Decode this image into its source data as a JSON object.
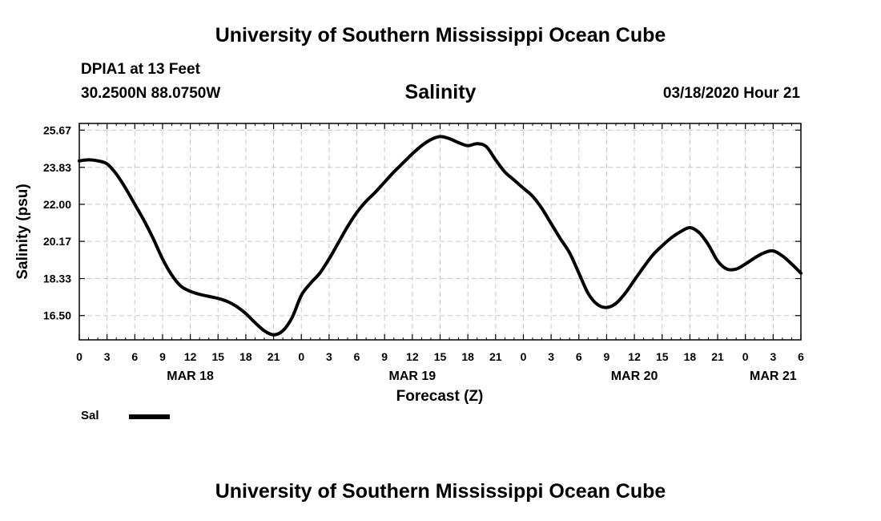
{
  "header": {
    "title": "University of Southern Mississippi Ocean Cube",
    "station": "DPIA1 at 13 Feet",
    "coordinates": "30.2500N 88.0750W",
    "datetime": "03/18/2020 Hour 21"
  },
  "footer": {
    "title": "University of Southern Mississippi Ocean Cube"
  },
  "legend": {
    "label": "Sal",
    "color": "#000000"
  },
  "chart_data": {
    "type": "line",
    "title": "Salinity",
    "xlabel": "Forecast (Z)",
    "ylabel": "Salinity (psu)",
    "xlim": [
      0,
      78
    ],
    "ylim": [
      15.3,
      26.0
    ],
    "grid": true,
    "legend_position": "bottom-left",
    "y_ticks": [
      16.5,
      18.33,
      20.17,
      22.0,
      23.83,
      25.67
    ],
    "y_tick_labels": [
      "16.50",
      "18.33",
      "20.17",
      "22.00",
      "23.83",
      "25.67"
    ],
    "x_ticks": [
      0,
      3,
      6,
      9,
      12,
      15,
      18,
      21,
      24,
      27,
      30,
      33,
      36,
      39,
      42,
      45,
      48,
      51,
      54,
      57,
      60,
      63,
      66,
      69,
      72,
      75,
      78
    ],
    "x_tick_labels": [
      "0",
      "3",
      "6",
      "9",
      "12",
      "15",
      "18",
      "21",
      "0",
      "3",
      "6",
      "9",
      "12",
      "15",
      "18",
      "21",
      "0",
      "3",
      "6",
      "9",
      "12",
      "15",
      "18",
      "21",
      "0",
      "3",
      "6"
    ],
    "day_labels": [
      {
        "x": 12,
        "label": "MAR 18"
      },
      {
        "x": 36,
        "label": "MAR 19"
      },
      {
        "x": 60,
        "label": "MAR 20"
      },
      {
        "x": 75,
        "label": "MAR 21"
      }
    ],
    "series": [
      {
        "name": "Sal",
        "color": "#000000",
        "x": [
          0,
          1,
          2,
          3,
          4,
          5,
          6,
          7,
          8,
          9,
          10,
          11,
          12,
          13,
          14,
          15,
          16,
          17,
          18,
          19,
          20,
          21,
          22,
          23,
          24,
          25,
          26,
          27,
          28,
          29,
          30,
          31,
          32,
          33,
          34,
          35,
          36,
          37,
          38,
          39,
          40,
          41,
          42,
          43,
          44,
          45,
          46,
          47,
          48,
          49,
          50,
          51,
          52,
          53,
          54,
          55,
          56,
          57,
          58,
          59,
          60,
          61,
          62,
          63,
          64,
          65,
          66,
          67,
          68,
          69,
          70,
          71,
          72,
          73,
          74,
          75,
          76,
          77,
          78
        ],
        "values": [
          24.15,
          24.2,
          24.15,
          24.0,
          23.5,
          22.8,
          22.0,
          21.2,
          20.3,
          19.3,
          18.5,
          17.95,
          17.7,
          17.55,
          17.45,
          17.35,
          17.2,
          16.95,
          16.6,
          16.15,
          15.75,
          15.55,
          15.75,
          16.4,
          17.5,
          18.1,
          18.6,
          19.3,
          20.1,
          20.9,
          21.6,
          22.15,
          22.6,
          23.1,
          23.6,
          24.05,
          24.5,
          24.9,
          25.2,
          25.35,
          25.25,
          25.05,
          24.9,
          25.0,
          24.85,
          24.2,
          23.6,
          23.2,
          22.8,
          22.4,
          21.8,
          21.05,
          20.3,
          19.6,
          18.6,
          17.6,
          17.05,
          16.9,
          17.1,
          17.6,
          18.25,
          18.9,
          19.5,
          19.95,
          20.35,
          20.65,
          20.85,
          20.6,
          20.0,
          19.2,
          18.8,
          18.8,
          19.05,
          19.35,
          19.6,
          19.7,
          19.45,
          19.05,
          18.6
        ]
      }
    ]
  }
}
